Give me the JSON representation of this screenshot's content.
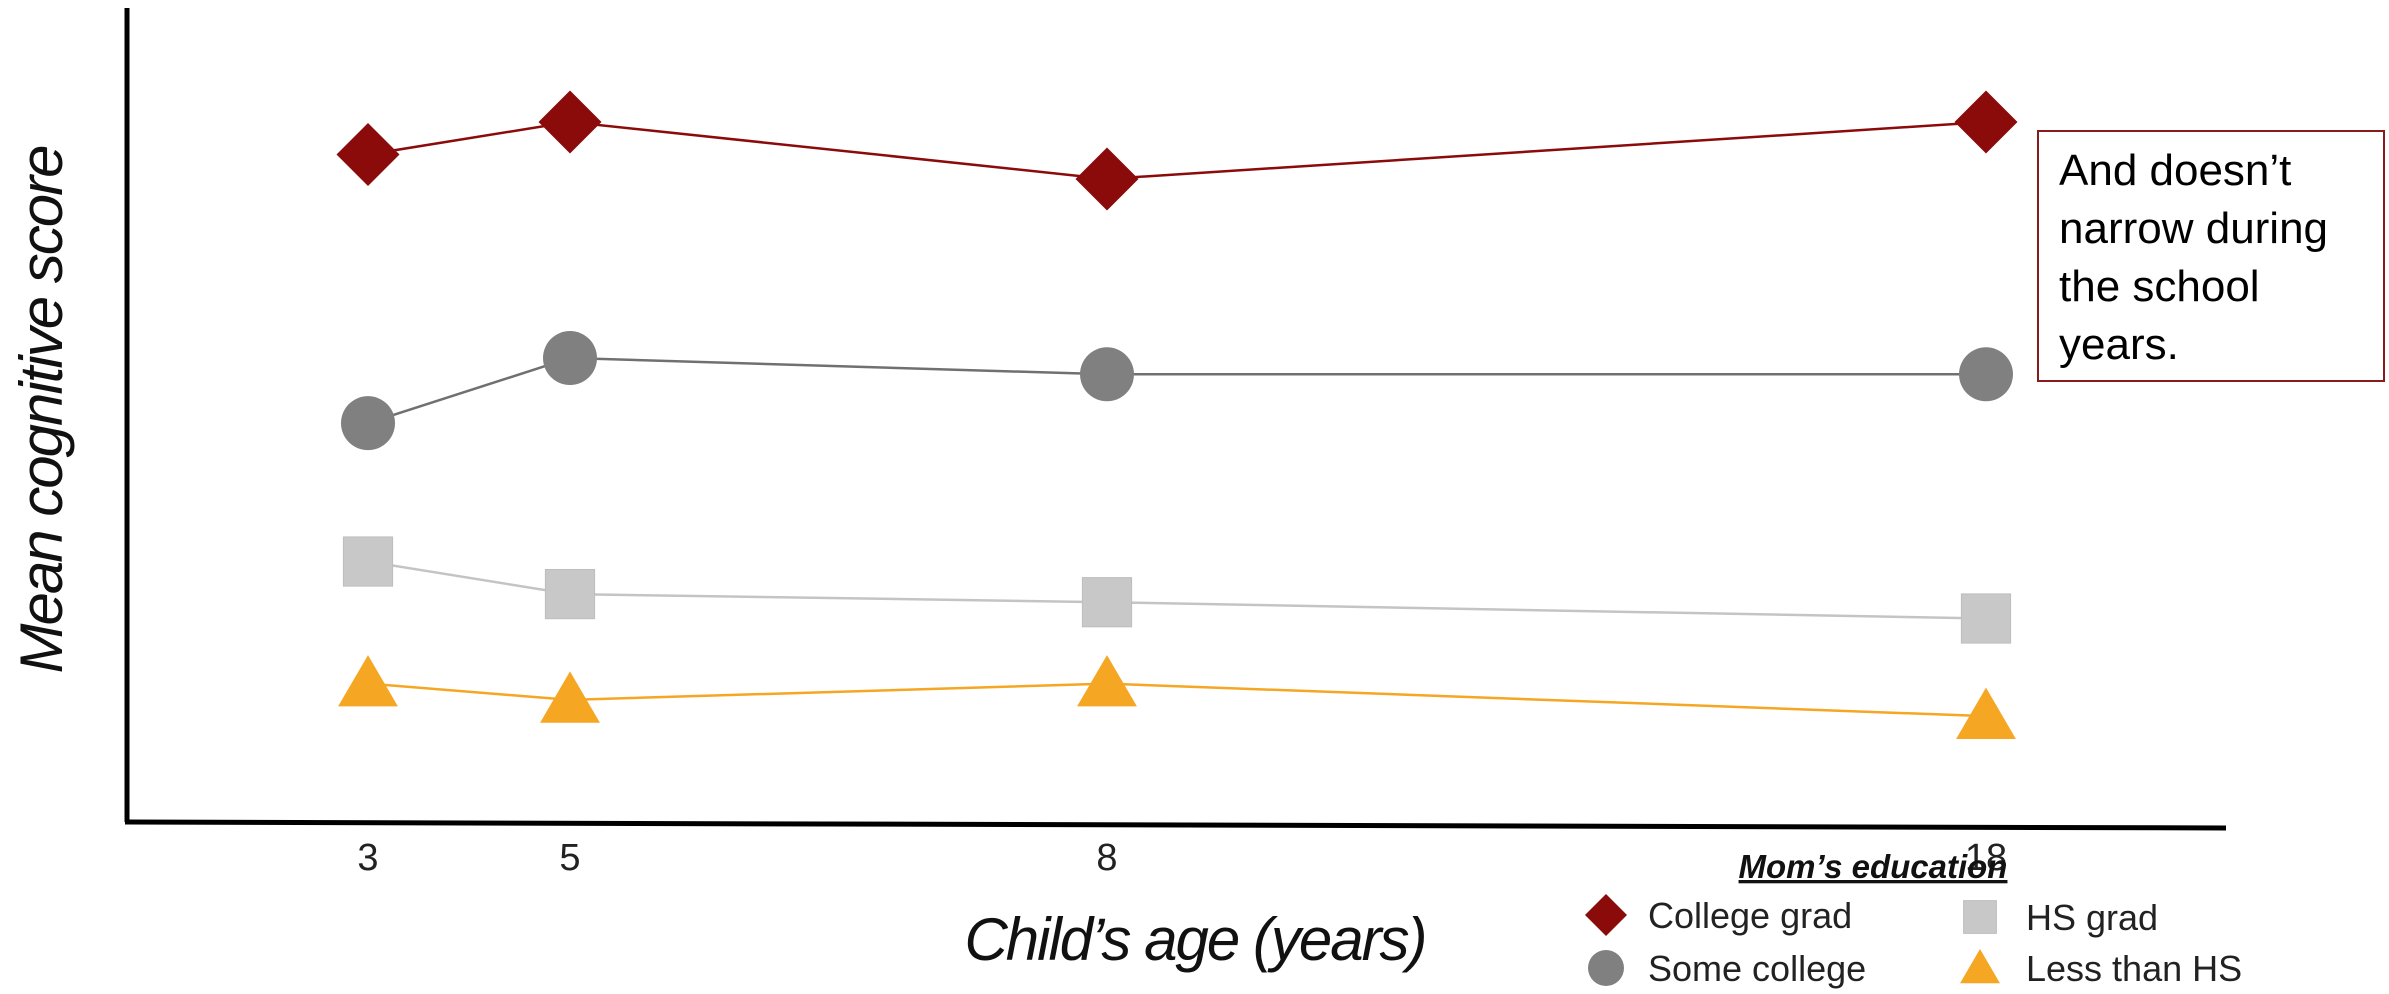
{
  "chart_data": {
    "type": "line",
    "xlabel": "Child’s age (years)",
    "ylabel": "Mean cognitive score",
    "x": [
      3,
      5,
      8,
      18
    ],
    "xtick_labels": [
      "3",
      "5",
      "8",
      "18"
    ],
    "series": [
      {
        "name": "College grad",
        "marker": "diamond",
        "color": "#8b0a0a",
        "values": [
          0.82,
          0.86,
          0.79,
          0.86
        ]
      },
      {
        "name": "Some college",
        "marker": "circle",
        "color": "#808080",
        "values": [
          0.49,
          0.57,
          0.55,
          0.55
        ]
      },
      {
        "name": "HS grad",
        "marker": "square",
        "color": "#c8c8c8",
        "values": [
          0.32,
          0.28,
          0.27,
          0.25
        ]
      },
      {
        "name": "Less than HS",
        "marker": "triangle",
        "color": "#f5a623",
        "values": [
          0.17,
          0.15,
          0.17,
          0.13
        ]
      }
    ],
    "ylim": [
      0,
      1
    ],
    "grid": false,
    "legend": {
      "title": "Mom’s education",
      "placement": "bottom-right"
    },
    "annotation": "And doesn’t narrow during the school years."
  }
}
